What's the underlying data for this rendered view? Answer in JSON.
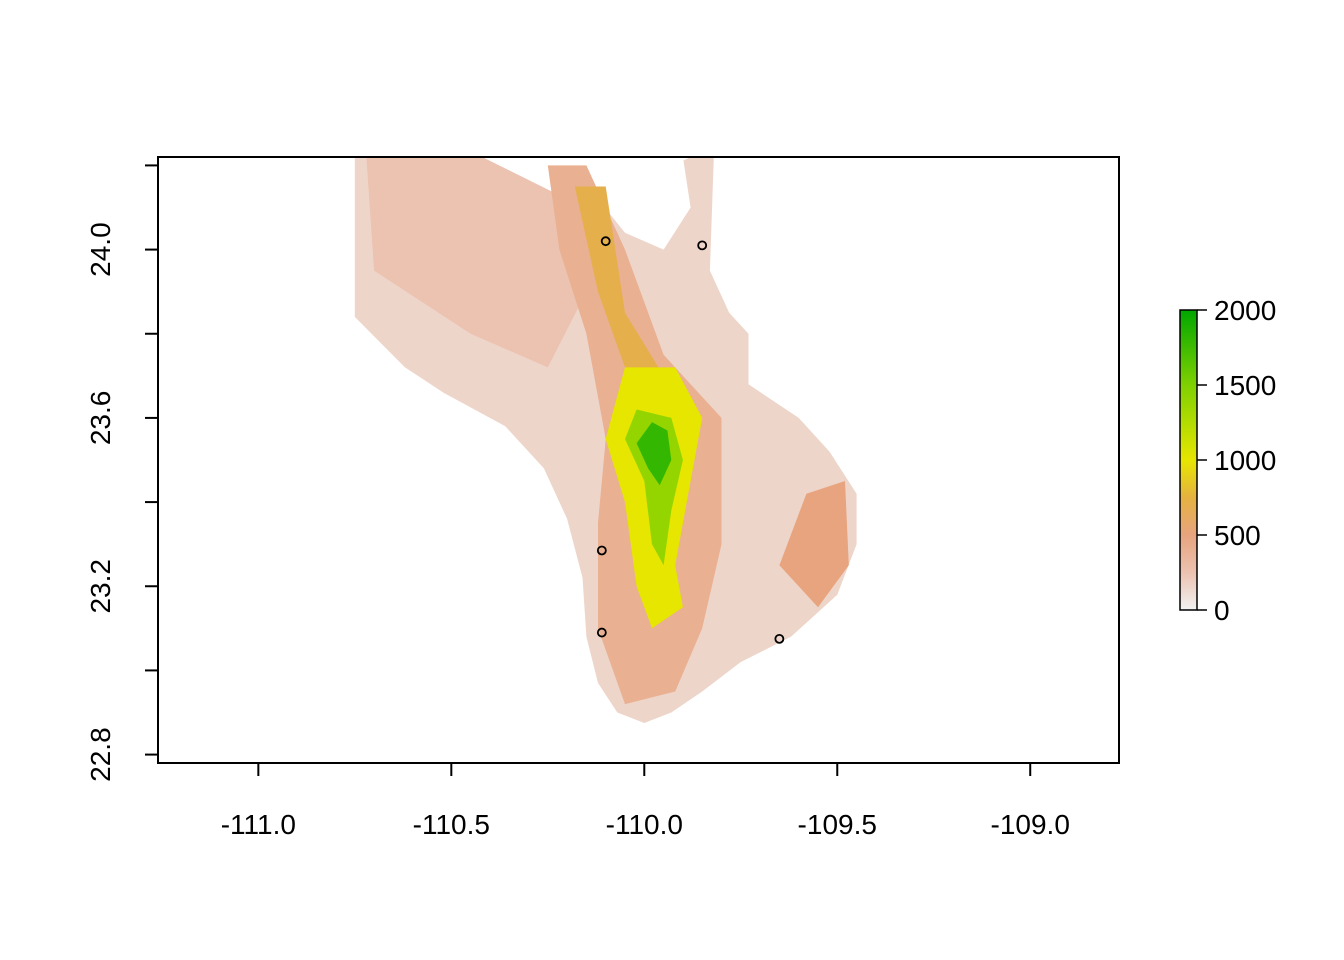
{
  "chart_data": {
    "type": "heatmap",
    "title": "",
    "xlabel": "",
    "ylabel": "",
    "xlim": [
      -111.26,
      -108.77
    ],
    "ylim": [
      22.78,
      24.22
    ],
    "x_ticks": [
      -111.0,
      -110.5,
      -110.0,
      -109.5,
      -109.0
    ],
    "x_tick_labels": [
      "-111.0",
      "-110.5",
      "-110.0",
      "-109.5",
      "-109.0"
    ],
    "y_ticks": [
      22.8,
      23.0,
      23.2,
      23.4,
      23.6,
      23.8,
      24.0,
      24.2
    ],
    "y_tick_labels": [
      "22.8",
      "",
      "23.2",
      "",
      "23.6",
      "",
      "24.0",
      ""
    ],
    "grid": false,
    "points": [
      {
        "x": -110.1,
        "y": 24.02
      },
      {
        "x": -109.85,
        "y": 24.01
      },
      {
        "x": -110.11,
        "y": 23.285
      },
      {
        "x": -110.11,
        "y": 23.09
      },
      {
        "x": -109.65,
        "y": 23.075
      }
    ],
    "raster": {
      "outline": [
        [
          -110.75,
          24.22
        ],
        [
          -110.42,
          24.22
        ],
        [
          -110.3,
          24.14
        ],
        [
          -110.15,
          24.1
        ],
        [
          -109.88,
          24.22
        ],
        [
          -109.82,
          24.22
        ],
        [
          -109.83,
          23.95
        ],
        [
          -109.78,
          23.85
        ],
        [
          -109.73,
          23.8
        ],
        [
          -109.73,
          23.68
        ],
        [
          -109.6,
          23.6
        ],
        [
          -109.52,
          23.52
        ],
        [
          -109.45,
          23.42
        ],
        [
          -109.45,
          23.3
        ],
        [
          -109.5,
          23.18
        ],
        [
          -109.62,
          23.08
        ],
        [
          -109.75,
          23.02
        ],
        [
          -109.85,
          22.95
        ],
        [
          -109.93,
          22.9
        ],
        [
          -110.0,
          22.875
        ],
        [
          -110.07,
          22.9
        ],
        [
          -110.12,
          22.97
        ],
        [
          -110.15,
          23.08
        ],
        [
          -110.16,
          23.22
        ],
        [
          -110.2,
          23.36
        ],
        [
          -110.26,
          23.48
        ],
        [
          -110.36,
          23.58
        ],
        [
          -110.52,
          23.66
        ],
        [
          -110.62,
          23.72
        ],
        [
          -110.75,
          23.84
        ]
      ],
      "bays": [
        [
          [
            -110.08,
            24.22
          ],
          [
            -109.9,
            24.22
          ],
          [
            -109.88,
            24.1
          ],
          [
            -109.95,
            24.0
          ],
          [
            -110.05,
            24.04
          ],
          [
            -110.12,
            24.12
          ]
        ],
        [
          [
            -110.45,
            24.22
          ],
          [
            -110.32,
            24.22
          ],
          [
            -110.35,
            24.14
          ],
          [
            -110.42,
            24.15
          ]
        ]
      ],
      "zones": [
        {
          "level": 250,
          "poly": [
            [
              -110.72,
              24.22
            ],
            [
              -110.42,
              24.22
            ],
            [
              -110.2,
              24.12
            ],
            [
              -110.15,
              23.9
            ],
            [
              -110.25,
              23.72
            ],
            [
              -110.45,
              23.8
            ],
            [
              -110.7,
              23.95
            ]
          ]
        },
        {
          "level": 400,
          "poly": [
            [
              -110.25,
              24.2
            ],
            [
              -110.15,
              24.2
            ],
            [
              -110.05,
              24.0
            ],
            [
              -109.95,
              23.75
            ],
            [
              -109.8,
              23.6
            ],
            [
              -109.8,
              23.3
            ],
            [
              -109.85,
              23.1
            ],
            [
              -109.92,
              22.95
            ],
            [
              -110.05,
              22.92
            ],
            [
              -110.12,
              23.1
            ],
            [
              -110.12,
              23.35
            ],
            [
              -110.1,
              23.55
            ],
            [
              -110.15,
              23.8
            ],
            [
              -110.22,
              24.0
            ]
          ]
        },
        {
          "level": 500,
          "poly": [
            [
              -109.58,
              23.42
            ],
            [
              -109.48,
              23.45
            ],
            [
              -109.47,
              23.25
            ],
            [
              -109.55,
              23.15
            ],
            [
              -109.65,
              23.25
            ]
          ]
        },
        {
          "level": 700,
          "poly": [
            [
              -110.18,
              24.15
            ],
            [
              -110.1,
              24.15
            ],
            [
              -110.05,
              23.85
            ],
            [
              -109.95,
              23.7
            ],
            [
              -110.05,
              23.72
            ],
            [
              -110.12,
              23.9
            ]
          ]
        },
        {
          "level": 1000,
          "poly": [
            [
              -110.05,
              23.72
            ],
            [
              -109.92,
              23.72
            ],
            [
              -109.85,
              23.6
            ],
            [
              -109.88,
              23.45
            ],
            [
              -109.92,
              23.25
            ],
            [
              -109.9,
              23.15
            ],
            [
              -109.98,
              23.1
            ],
            [
              -110.02,
              23.2
            ],
            [
              -110.05,
              23.4
            ],
            [
              -110.1,
              23.55
            ]
          ]
        },
        {
          "level": 1400,
          "poly": [
            [
              -110.02,
              23.62
            ],
            [
              -109.93,
              23.6
            ],
            [
              -109.9,
              23.5
            ],
            [
              -109.93,
              23.38
            ],
            [
              -109.95,
              23.25
            ],
            [
              -109.98,
              23.3
            ],
            [
              -110.0,
              23.45
            ],
            [
              -110.05,
              23.55
            ]
          ]
        },
        {
          "level": 1800,
          "poly": [
            [
              -109.98,
              23.59
            ],
            [
              -109.94,
              23.57
            ],
            [
              -109.93,
              23.5
            ],
            [
              -109.96,
              23.44
            ],
            [
              -109.99,
              23.48
            ],
            [
              -110.02,
              23.54
            ]
          ]
        }
      ]
    },
    "legend": {
      "position": "right",
      "min": 0,
      "max": 2000,
      "ticks": [
        0,
        500,
        1000,
        1500,
        2000
      ],
      "tick_labels": [
        "0",
        "500",
        "1000",
        "1500",
        "2000"
      ],
      "colors": [
        {
          "value": 0,
          "color": "#f2f2f2"
        },
        {
          "value": 250,
          "color": "#ecc2b0"
        },
        {
          "value": 500,
          "color": "#e7a47e"
        },
        {
          "value": 750,
          "color": "#e5b240"
        },
        {
          "value": 1000,
          "color": "#e6e600"
        },
        {
          "value": 1500,
          "color": "#7fd100"
        },
        {
          "value": 2000,
          "color": "#00a600"
        }
      ]
    }
  }
}
